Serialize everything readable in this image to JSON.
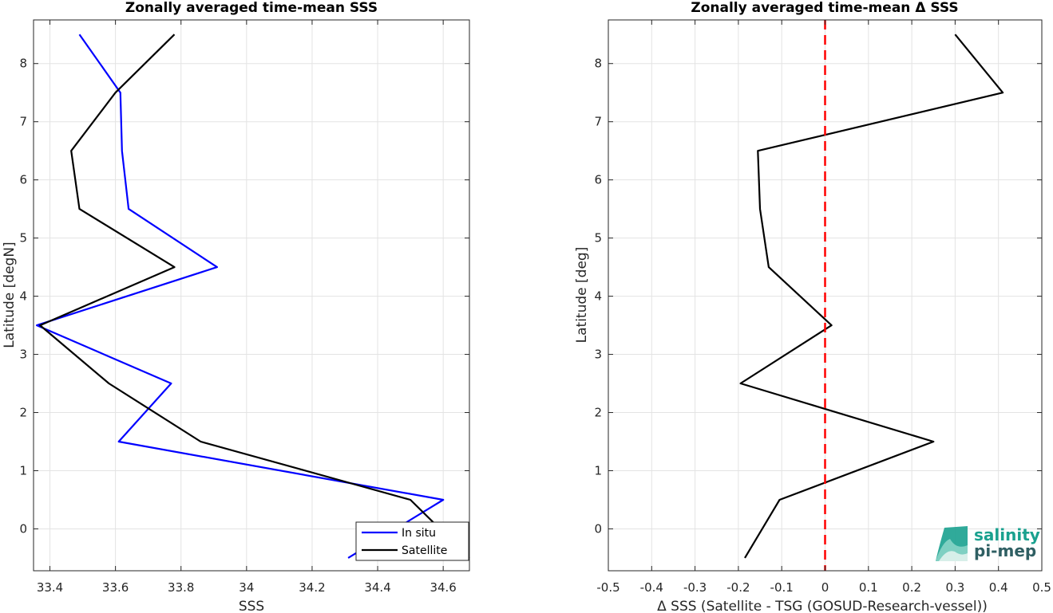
{
  "chart_data": [
    {
      "type": "line",
      "title": "Zonally averaged time-mean SSS",
      "xlabel": "SSS",
      "ylabel": "Latitude [degN]",
      "xlim": [
        33.35,
        34.68
      ],
      "ylim": [
        -0.72,
        8.75
      ],
      "xticks": [
        "33.4",
        "33.6",
        "33.8",
        "34",
        "34.2",
        "34.4",
        "34.6"
      ],
      "yticks": [
        "0",
        "1",
        "2",
        "3",
        "4",
        "5",
        "6",
        "7",
        "8"
      ],
      "grid": true,
      "legend": {
        "placement": "bottom-right",
        "entries": [
          "In situ",
          "Satellite"
        ]
      },
      "series": [
        {
          "name": "In situ",
          "color": "#0000ff",
          "x": [
            34.31,
            34.6,
            33.61,
            33.77,
            33.36,
            33.91,
            33.64,
            33.62,
            33.615,
            33.49
          ],
          "y": [
            -0.5,
            0.5,
            1.5,
            2.5,
            3.5,
            4.5,
            5.5,
            6.5,
            7.5,
            8.5
          ]
        },
        {
          "name": "Satellite",
          "color": "#000000",
          "x": [
            34.68,
            34.5,
            33.86,
            33.58,
            33.37,
            33.78,
            33.49,
            33.465,
            33.6,
            33.78
          ],
          "y": [
            -0.5,
            0.5,
            1.5,
            2.5,
            3.5,
            4.5,
            5.5,
            6.5,
            7.5,
            8.5
          ]
        }
      ]
    },
    {
      "type": "line",
      "title": "Zonally averaged time-mean Δ SSS",
      "xlabel": "Δ SSS (Satellite - TSG (GOSUD-Research-vessel))",
      "ylabel": "Latitude [deg]",
      "xlim": [
        -0.5,
        0.5
      ],
      "ylim": [
        -0.72,
        8.75
      ],
      "xticks": [
        "-0.5",
        "-0.4",
        "-0.3",
        "-0.2",
        "-0.1",
        "0",
        "0.1",
        "0.2",
        "0.3",
        "0.4",
        "0.5"
      ],
      "yticks": [
        "0",
        "1",
        "2",
        "3",
        "4",
        "5",
        "6",
        "7",
        "8"
      ],
      "grid": true,
      "reference_line": {
        "x": 0,
        "color": "#ff0000",
        "style": "dashed"
      },
      "series": [
        {
          "color": "#000000",
          "x": [
            -0.185,
            -0.105,
            0.25,
            -0.195,
            0.015,
            -0.13,
            -0.15,
            -0.155,
            0.41,
            0.3
          ],
          "y": [
            -0.5,
            0.5,
            1.5,
            2.5,
            3.5,
            4.5,
            5.5,
            6.5,
            7.5,
            8.5
          ]
        }
      ]
    }
  ],
  "logo": {
    "line1": "salinity",
    "line2": "pi-mep",
    "color1": "#1aa18f",
    "color2": "#2f5f63"
  }
}
